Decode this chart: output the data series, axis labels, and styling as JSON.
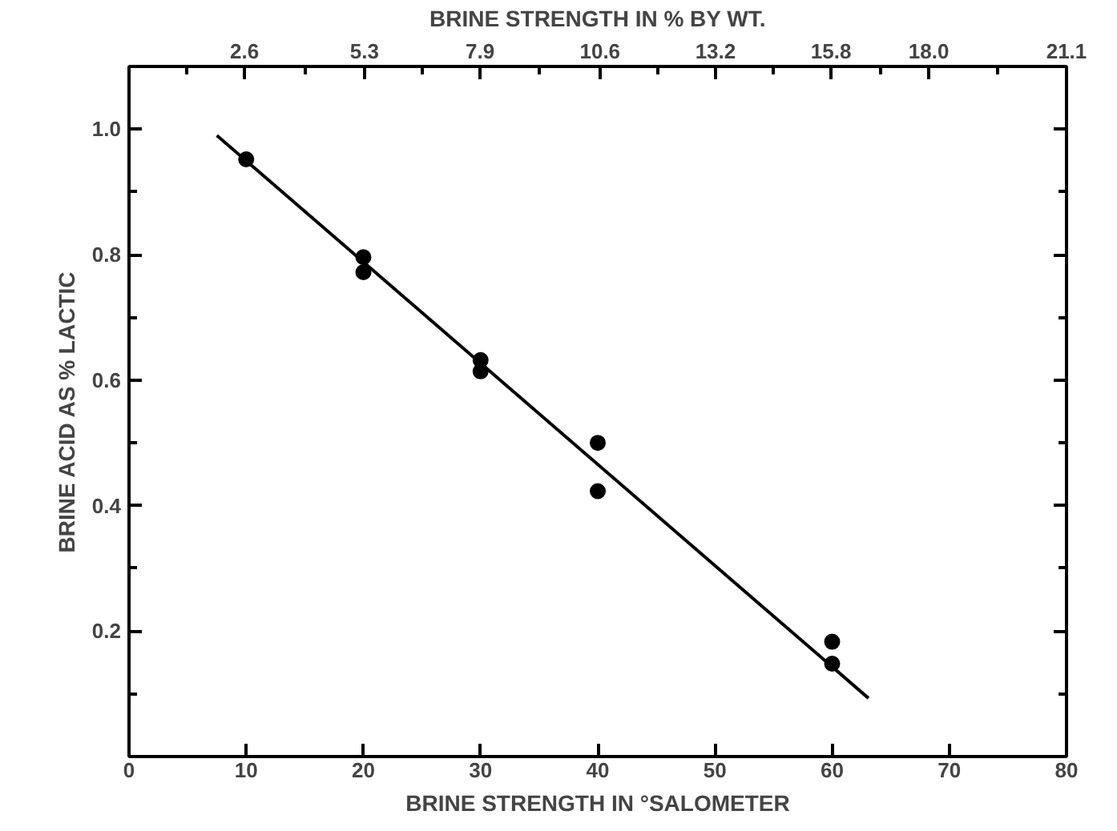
{
  "chart_data": {
    "type": "scatter",
    "xlabel": "BRINE STRENGTH IN °SALOMETER",
    "ylabel": "BRINE ACID AS % LACTIC",
    "x2label": "BRINE STRENGTH IN % BY WT.",
    "xlim": [
      0,
      80
    ],
    "xticks": [
      0,
      10,
      20,
      30,
      40,
      50,
      60,
      70,
      80
    ],
    "x2lim": [
      0,
      21.1
    ],
    "x2ticks": [
      {
        "value": 1.3,
        "label": null
      },
      2.6,
      {
        "value": 3.95,
        "label": null
      },
      5.3,
      {
        "value": 6.6,
        "label": null
      },
      7.9,
      {
        "value": 9.25,
        "label": null
      },
      10.6,
      {
        "value": 11.9,
        "label": null
      },
      13.2,
      {
        "value": 14.5,
        "label": null
      },
      15.8,
      {
        "value": 16.9,
        "label": null
      },
      {
        "value": 18.0,
        "label": "18.0"
      },
      {
        "value": 19.55,
        "label": null
      },
      21.1
    ],
    "ylim": [
      0,
      1.1
    ],
    "yticks": [
      {
        "value": 0.1,
        "label": null
      },
      {
        "value": 0.2,
        "label": "0.2"
      },
      {
        "value": 0.3,
        "label": null
      },
      {
        "value": 0.4,
        "label": "0.4"
      },
      {
        "value": 0.5,
        "label": null
      },
      {
        "value": 0.6,
        "label": "0.6"
      },
      {
        "value": 0.7,
        "label": null
      },
      {
        "value": 0.8,
        "label": "0.8"
      },
      {
        "value": 0.9,
        "label": null
      },
      {
        "value": 1.0,
        "label": "1.0"
      }
    ],
    "grid": false,
    "marker": "circle",
    "series": [
      {
        "color": "#000000",
        "x": [
          10,
          20,
          20,
          30,
          30,
          40,
          40,
          60,
          60
        ],
        "values": [
          0.952,
          0.796,
          0.772,
          0.632,
          0.614,
          0.5,
          0.423,
          0.183,
          0.148
        ]
      },
      {
        "type": "line",
        "color": "#000000",
        "line_style": "solid",
        "marker": "none",
        "x": [
          7.5,
          63.1
        ],
        "values": [
          0.99,
          0.093
        ]
      }
    ]
  }
}
